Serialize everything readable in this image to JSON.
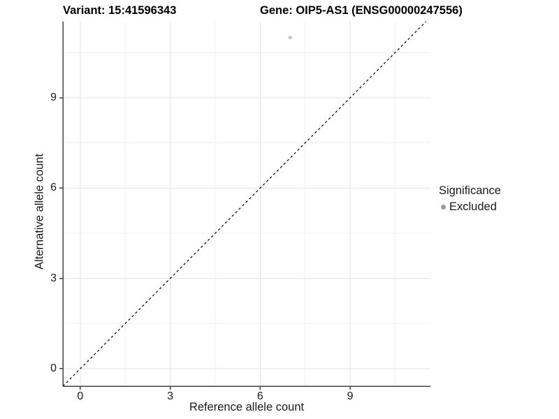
{
  "chart_data": {
    "type": "scatter",
    "title_left": "Variant: 15:41596343",
    "title_right": "Gene: OIP5-AS1 (ENSG00000247556)",
    "xlabel": "Reference allele count",
    "ylabel": "Alternative allele count",
    "x_range": [
      -0.58,
      11.68
    ],
    "y_range": [
      -0.58,
      11.53
    ],
    "x_major_ticks": [
      0,
      3,
      6,
      9
    ],
    "y_major_ticks": [
      0,
      3,
      6,
      9
    ],
    "x_minor_gridlines": [
      1.5,
      4.5,
      7.5,
      10.5
    ],
    "y_minor_gridlines": [
      1.5,
      4.5,
      7.5,
      10.5
    ],
    "grid": "on",
    "points": [
      {
        "x": 7,
        "y": 11,
        "significance": "Excluded"
      }
    ],
    "identity_line": {
      "equation": "y = x",
      "style": "dashed",
      "color": "#000000"
    },
    "legend": {
      "title": "Significance",
      "position": "right",
      "entries": [
        {
          "label": "Excluded",
          "color": "#9c9c9c"
        }
      ]
    },
    "colors": {
      "point": "#c5c5c5",
      "axis_line": "#434343",
      "major_grid": "#e3e3e3",
      "minor_grid": "#f1f1f1",
      "background": "#ffffff"
    }
  }
}
